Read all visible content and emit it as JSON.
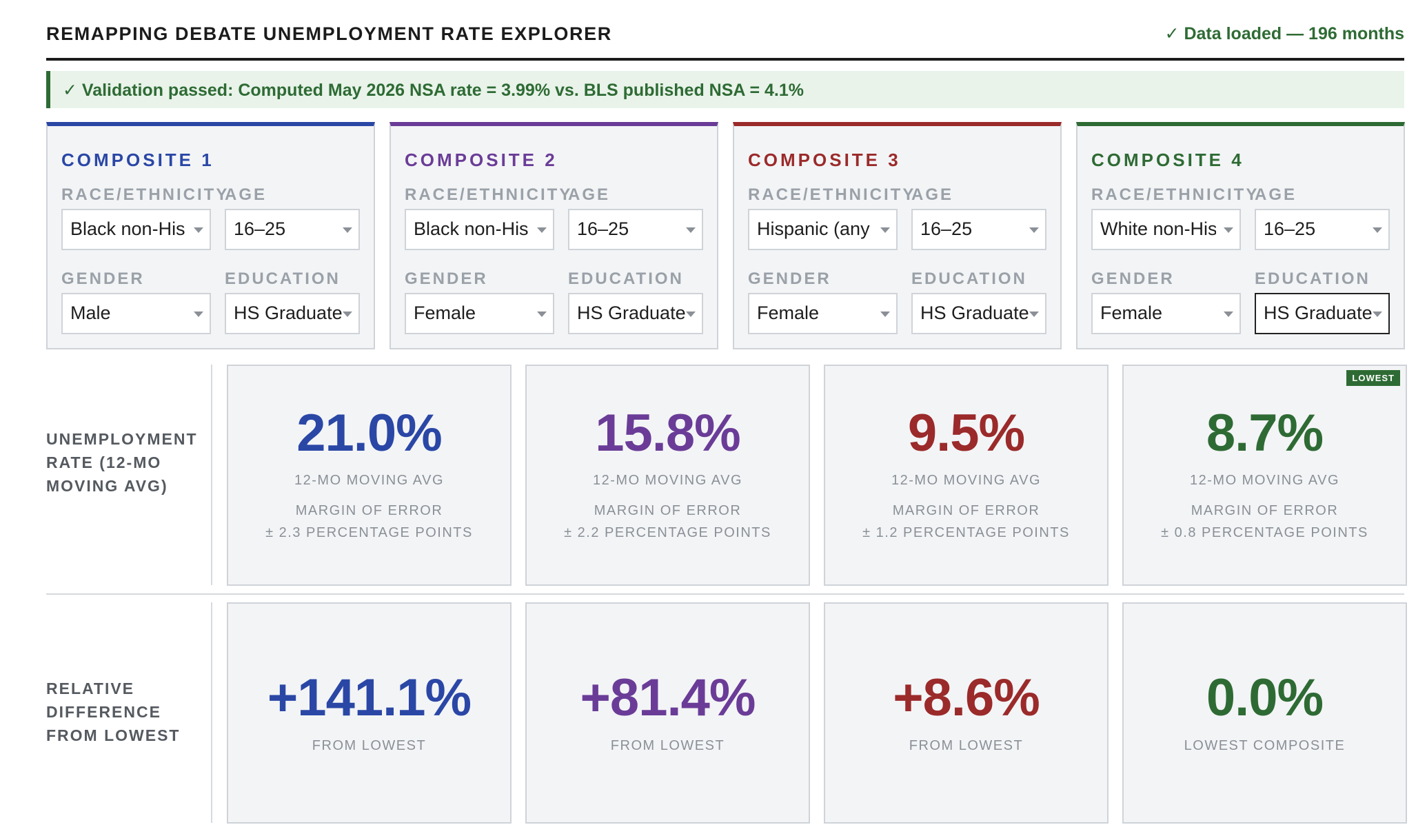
{
  "header": {
    "title": "REMAPPING DEBATE UNEMPLOYMENT RATE EXPLORER",
    "status": "✓ Data loaded — 196 months",
    "status_color": "#2e6b34"
  },
  "validation": {
    "text": "✓ Validation passed: Computed May 2026 NSA rate = 3.99% vs. BLS published NSA = 4.1%"
  },
  "field_labels": {
    "race": "RACE/ETHNICITY",
    "age": "AGE",
    "gender": "GENDER",
    "education": "EDUCATION"
  },
  "composites": [
    {
      "title": "COMPOSITE 1",
      "color": "#2a47a6",
      "race": "Black non-Hisp",
      "age": "16–25",
      "gender": "Male",
      "education": "HS Graduate",
      "rate": "21.0%",
      "rate_caption": "12-MO MOVING AVG",
      "moe_label": "MARGIN OF ERROR",
      "moe": "± 2.3 PERCENTAGE POINTS",
      "rel": "+141.1%",
      "rel_caption": "FROM LOWEST"
    },
    {
      "title": "COMPOSITE 2",
      "color": "#6a3c97",
      "race": "Black non-Hisp",
      "age": "16–25",
      "gender": "Female",
      "education": "HS Graduate",
      "rate": "15.8%",
      "rate_caption": "12-MO MOVING AVG",
      "moe_label": "MARGIN OF ERROR",
      "moe": "± 2.2 PERCENTAGE POINTS",
      "rel": "+81.4%",
      "rel_caption": "FROM LOWEST"
    },
    {
      "title": "COMPOSITE 3",
      "color": "#9b2a2a",
      "race": "Hispanic (any r",
      "age": "16–25",
      "gender": "Female",
      "education": "HS Graduate",
      "rate": "9.5%",
      "rate_caption": "12-MO MOVING AVG",
      "moe_label": "MARGIN OF ERROR",
      "moe": "± 1.2 PERCENTAGE POINTS",
      "rel": "+8.6%",
      "rel_caption": "FROM LOWEST"
    },
    {
      "title": "COMPOSITE 4",
      "color": "#2e6b34",
      "race": "White non-Hisp",
      "age": "16–25",
      "gender": "Female",
      "education": "HS Graduate",
      "rate": "8.7%",
      "rate_caption": "12-MO MOVING AVG",
      "moe_label": "MARGIN OF ERROR",
      "moe": "± 0.8 PERCENTAGE POINTS",
      "rel": "0.0%",
      "rel_caption": "LOWEST COMPOSITE",
      "badge": "LOWEST"
    }
  ],
  "rows": {
    "rate_label": "UNEMPLOYMENT RATE (12-MO MOVING AVG)",
    "rel_label": "RELATIVE DIFFERENCE FROM LOWEST"
  }
}
